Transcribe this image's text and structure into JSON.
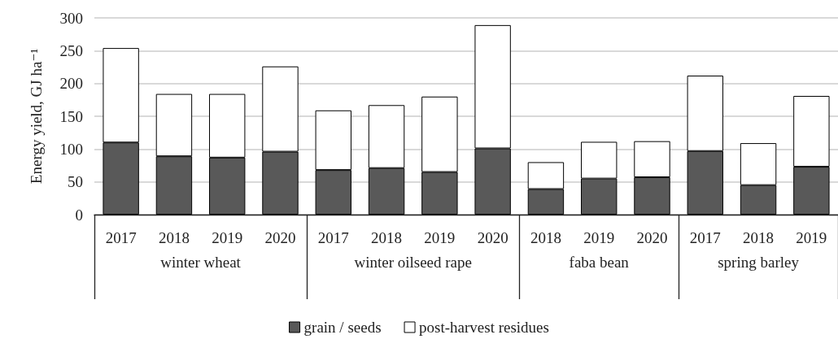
{
  "chart_data": {
    "type": "bar",
    "stacked": true,
    "ylabel": "Energy yield, GJ ha⁻¹",
    "categories": [
      "2017",
      "2018",
      "2019",
      "2020",
      "2017",
      "2018",
      "2019",
      "2020",
      "2018",
      "2019",
      "2020",
      "2017",
      "2018",
      "2019"
    ],
    "annotations": [
      "winter wheat",
      "winter oilseed rape",
      "faba bean",
      "spring barley"
    ],
    "series": [
      {
        "name": "grain / seeds",
        "color": "#595959",
        "values": [
          110,
          89,
          87,
          96,
          68,
          71,
          65,
          101,
          39,
          55,
          57,
          97,
          45,
          73
        ]
      },
      {
        "name": "post-harvest residues",
        "color": "#ffffff",
        "values": [
          144,
          95,
          97,
          130,
          91,
          96,
          115,
          188,
          41,
          56,
          55,
          115,
          64,
          108
        ]
      }
    ],
    "ylim": [
      0,
      300
    ],
    "yticks": [
      0,
      50,
      100,
      150,
      200,
      250,
      300
    ],
    "grid": "y",
    "legend": "bottom"
  }
}
